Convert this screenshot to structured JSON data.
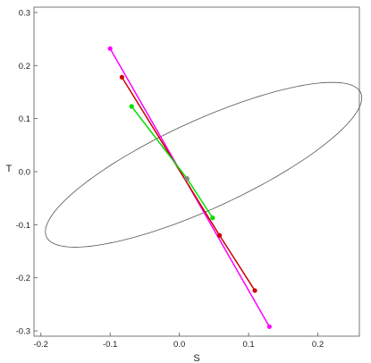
{
  "chart_data": {
    "type": "scatter",
    "title": "",
    "xlabel": "S",
    "ylabel": "T",
    "xlim": [
      -0.21,
      0.26
    ],
    "ylim": [
      -0.31,
      0.31
    ],
    "xticks": [
      -0.2,
      -0.1,
      0.0,
      0.1,
      0.2
    ],
    "xtick_labels": [
      "-0.2",
      "-0.1",
      "0.0",
      "0.1",
      "0.2"
    ],
    "yticks": [
      -0.3,
      -0.2,
      -0.1,
      0.0,
      0.1,
      0.2,
      0.3
    ],
    "ytick_labels": [
      "-0.3",
      "-0.2",
      "-0.1",
      "0.0",
      "0.1",
      "0.2",
      "0.3"
    ],
    "grid": false,
    "ellipse": {
      "center": [
        0.035,
        0.013
      ],
      "semi_major": 0.265,
      "semi_minor": 0.078,
      "angle_deg": 32,
      "color": "#555555"
    },
    "series": [
      {
        "color": "#FF00FF",
        "points": [
          [
            -0.1,
            0.232
          ],
          [
            0.13,
            -0.292
          ]
        ]
      },
      {
        "color": "#CC0000",
        "points": [
          [
            -0.083,
            0.178
          ],
          [
            0.058,
            -0.12
          ],
          [
            0.109,
            -0.224
          ]
        ]
      },
      {
        "color": "#00E000",
        "points": [
          [
            -0.069,
            0.123
          ],
          [
            0.011,
            -0.013
          ],
          [
            0.048,
            -0.087
          ]
        ]
      }
    ],
    "center_point": {
      "x": 0.011,
      "y": -0.013,
      "color": "#888888"
    }
  }
}
